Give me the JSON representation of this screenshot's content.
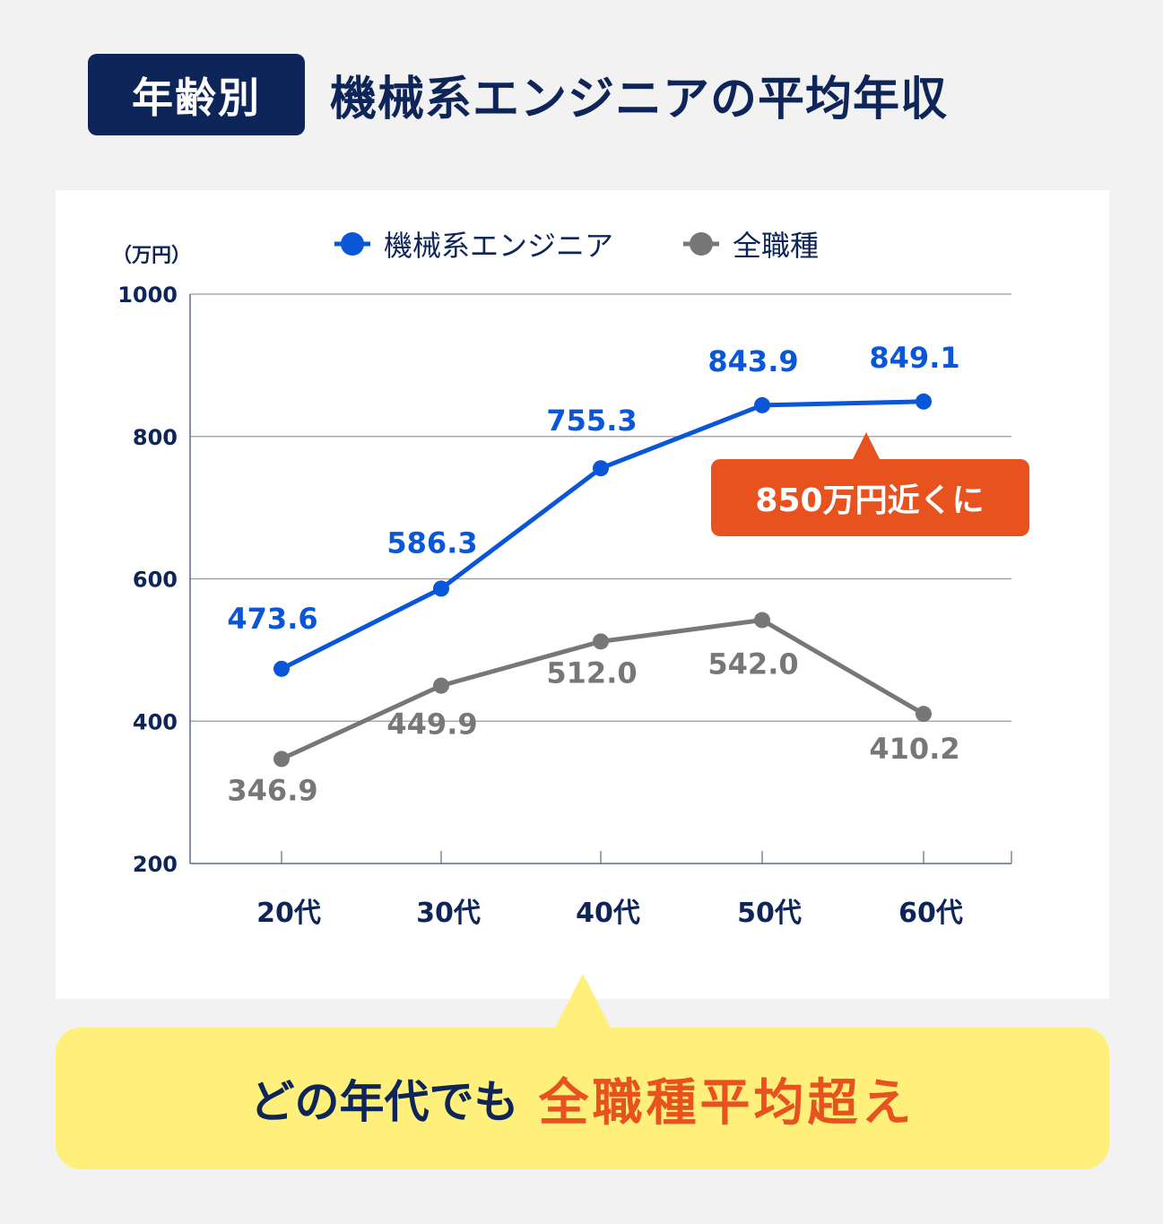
{
  "header": {
    "badge": "年齢別",
    "title": "機械系エンジニアの平均年収"
  },
  "colors": {
    "navy": "#0e2559",
    "blue": "#0a56d8",
    "gray": "#777777",
    "orange": "#e8521f",
    "yellow": "#fef07a"
  },
  "annotation": {
    "label": "850万円近くに"
  },
  "footer": {
    "lead": "どの年代でも",
    "emphasis": "全職種平均超え"
  },
  "chart_data": {
    "type": "line",
    "title": "機械系エンジニアの平均年収",
    "subtitle": "年齢別",
    "ylabel": "（万円）",
    "xlabel": "",
    "categories": [
      "20代",
      "30代",
      "40代",
      "50代",
      "60代"
    ],
    "yticks": [
      200,
      400,
      600,
      800,
      1000
    ],
    "ylim": [
      200,
      1000
    ],
    "grid": true,
    "legend_position": "top",
    "series": [
      {
        "name": "機械系エンジニア",
        "color": "#0a56d8",
        "values": [
          473.6,
          586.3,
          755.3,
          843.9,
          849.1
        ],
        "labels": [
          "473.6",
          "586.3",
          "755.3",
          "843.9",
          "849.1"
        ]
      },
      {
        "name": "全職種",
        "color": "#777777",
        "values": [
          346.9,
          449.9,
          512.0,
          542.0,
          410.2
        ],
        "labels": [
          "346.9",
          "449.9",
          "512.0",
          "542.0",
          "410.2"
        ]
      }
    ],
    "annotations": [
      "850万円近くに"
    ]
  }
}
